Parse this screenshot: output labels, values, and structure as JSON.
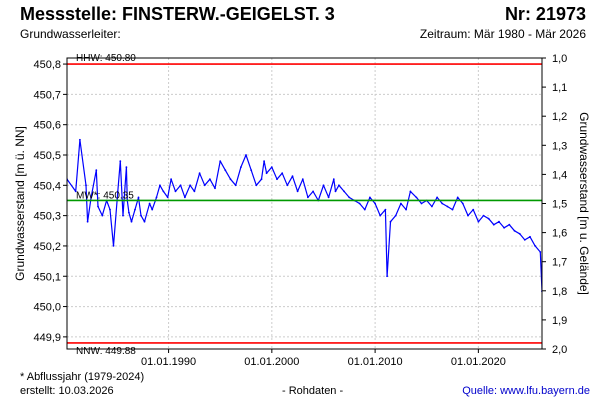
{
  "header": {
    "title": "Messstelle: FINSTERW.-GEIGELST. 3",
    "number": "Nr: 21973",
    "aquifer": "Grundwasserleiter:",
    "period": "Zeitraum: Mär 1980 - Mär 2026"
  },
  "footer": {
    "note": "* Abflussjahr (1979-2024)",
    "created": "erstellt:  10.03.2026",
    "raw": "- Rohdaten -",
    "source": "Quelle: www.lfu.bayern.de"
  },
  "colors": {
    "series": "#0000ff",
    "extreme_lines": "#ff0000",
    "mean_line": "#009900",
    "grid": "#cccccc"
  },
  "chart_data": {
    "type": "line",
    "title": "",
    "xlabel": "",
    "ylabel": "Grundwasserstand [m ü. NN]",
    "y2label": "Grundwasserstand [m u. Gelände]",
    "xlim": [
      "1980-03-01",
      "2026-03-01"
    ],
    "ylim": [
      449.86,
      450.82
    ],
    "y2lim": [
      2.0,
      1.0
    ],
    "x_tick_labels": [
      "01.01.1990",
      "01.01.2000",
      "01.01.2010",
      "01.01.2020"
    ],
    "y_tick_labels": [
      "450,8",
      "450,7",
      "450,6",
      "450,5",
      "450,4",
      "450,3",
      "450,2",
      "450,1",
      "450,0",
      "449,9"
    ],
    "y2_tick_labels": [
      "1,0",
      "1,1",
      "1,2",
      "1,3",
      "1,4",
      "1,5",
      "1,6",
      "1,7",
      "1,8",
      "1,9",
      "2,0"
    ],
    "grid": true,
    "reference_lines": [
      {
        "label": "HHW: 450.80",
        "value": 450.8
      },
      {
        "label": "MW*: 450.35",
        "value": 450.35
      },
      {
        "label": "NNW: 449.88",
        "value": 449.88
      }
    ],
    "series": [
      {
        "x": [
          "1980-03-01",
          "1981-01-01",
          "1981-06-01",
          "1982-01-01",
          "1982-03-01",
          "1982-07-01",
          "1983-01-01",
          "1983-03-01",
          "1983-08-01",
          "1984-01-01",
          "1984-05-01",
          "1984-09-01",
          "1985-02-01",
          "1985-05-01",
          "1985-08-01",
          "1985-12-01",
          "1986-01-01",
          "1986-03-01",
          "1986-06-01",
          "1986-10-01",
          "1987-02-01",
          "1987-05-01",
          "1987-09-01",
          "1988-03-01",
          "1988-06-01",
          "1988-11-01",
          "1989-03-01",
          "1989-07-01",
          "1989-12-01",
          "1990-04-01",
          "1990-09-01",
          "1991-03-01",
          "1991-08-01",
          "1992-02-01",
          "1992-07-01",
          "1993-01-01",
          "1993-07-01",
          "1994-01-01",
          "1994-07-01",
          "1995-01-01",
          "1995-07-01",
          "1996-01-01",
          "1996-07-01",
          "1997-01-01",
          "1997-07-01",
          "1998-01-01",
          "1998-07-01",
          "1999-01-01",
          "1999-04-01",
          "1999-07-01",
          "2000-01-01",
          "2000-07-01",
          "2001-01-01",
          "2001-07-01",
          "2002-01-01",
          "2002-07-01",
          "2003-01-01",
          "2003-07-01",
          "2004-01-01",
          "2004-07-01",
          "2005-01-01",
          "2005-07-01",
          "2006-01-01",
          "2006-03-01",
          "2006-07-01",
          "2007-01-01",
          "2007-07-01",
          "2008-01-01",
          "2008-07-01",
          "2009-01-01",
          "2009-07-01",
          "2010-01-01",
          "2010-07-01",
          "2011-01-01",
          "2011-03-01",
          "2011-07-01",
          "2012-01-01",
          "2012-07-01",
          "2013-01-01",
          "2013-06-01",
          "2014-01-01",
          "2014-07-01",
          "2015-01-01",
          "2015-07-01",
          "2016-01-01",
          "2016-07-01",
          "2017-01-01",
          "2017-07-01",
          "2018-01-01",
          "2018-07-01",
          "2019-01-01",
          "2019-07-01",
          "2020-01-01",
          "2020-07-01",
          "2021-01-01",
          "2021-07-01",
          "2022-01-01",
          "2022-07-01",
          "2023-01-01",
          "2023-07-01",
          "2024-01-01",
          "2024-07-01",
          "2025-01-01",
          "2025-07-01",
          "2026-01-01",
          "2026-03-01"
        ],
        "y": [
          450.42,
          450.38,
          450.55,
          450.4,
          450.28,
          450.36,
          450.45,
          450.33,
          450.3,
          450.35,
          450.32,
          450.2,
          450.38,
          450.48,
          450.3,
          450.46,
          450.35,
          450.31,
          450.28,
          450.32,
          450.36,
          450.3,
          450.28,
          450.34,
          450.32,
          450.36,
          450.4,
          450.38,
          450.36,
          450.42,
          450.38,
          450.4,
          450.36,
          450.4,
          450.38,
          450.44,
          450.4,
          450.42,
          450.39,
          450.48,
          450.45,
          450.42,
          450.4,
          450.46,
          450.5,
          450.45,
          450.4,
          450.42,
          450.48,
          450.44,
          450.46,
          450.42,
          450.44,
          450.4,
          450.43,
          450.38,
          450.42,
          450.36,
          450.38,
          450.35,
          450.4,
          450.36,
          450.42,
          450.38,
          450.4,
          450.38,
          450.36,
          450.35,
          450.34,
          450.32,
          450.36,
          450.34,
          450.3,
          450.32,
          450.1,
          450.28,
          450.3,
          450.34,
          450.32,
          450.38,
          450.36,
          450.34,
          450.35,
          450.33,
          450.36,
          450.34,
          450.33,
          450.32,
          450.36,
          450.34,
          450.3,
          450.32,
          450.28,
          450.3,
          450.29,
          450.27,
          450.28,
          450.26,
          450.27,
          450.25,
          450.24,
          450.22,
          450.23,
          450.2,
          450.18,
          450.05
        ]
      }
    ],
    "annotations": [
      "01.01.1990",
      "01.01.2000",
      "01.01.2010",
      "01.01.2020"
    ]
  }
}
